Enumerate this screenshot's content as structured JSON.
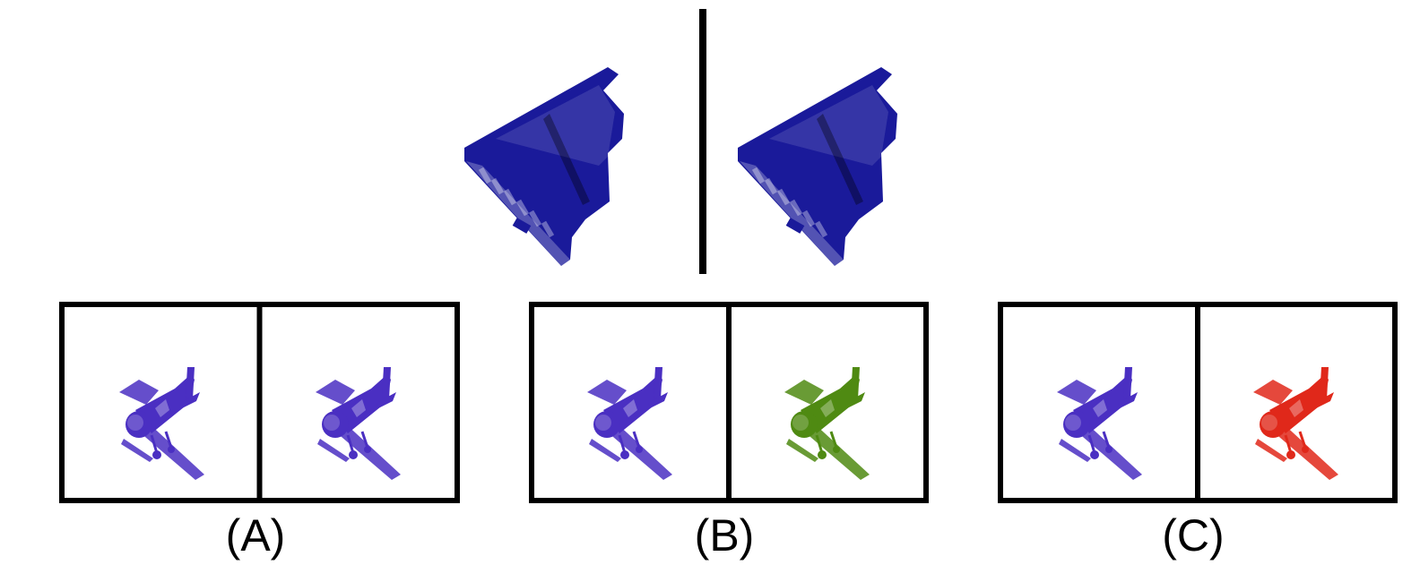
{
  "reference": {
    "object_icon": "grand-piano-icon",
    "left_color": "#1a1a9a",
    "right_color": "#1a1a9a"
  },
  "options": [
    {
      "label": "(A)",
      "object_icon": "airplane-icon",
      "left_color": "#4a2fc2",
      "right_color": "#4a2fc2"
    },
    {
      "label": "(B)",
      "object_icon": "airplane-icon",
      "left_color": "#4a2fc2",
      "right_color": "#4f8a12"
    },
    {
      "label": "(C)",
      "object_icon": "airplane-icon",
      "left_color": "#4a2fc2",
      "right_color": "#e0281a"
    }
  ]
}
